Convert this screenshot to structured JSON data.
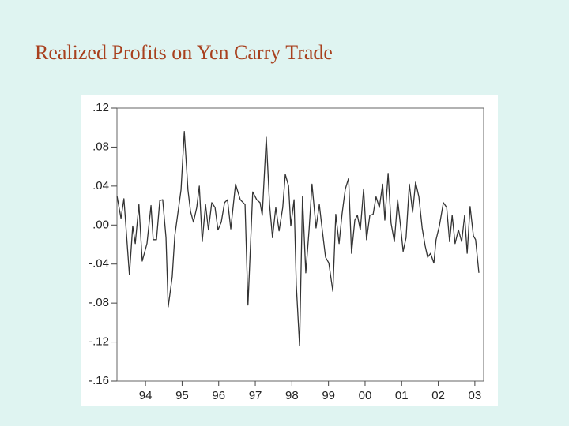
{
  "chart_data": {
    "type": "line",
    "title": "Realized Profits on Yen Carry Trade",
    "x": [
      1993.72,
      1993.83,
      1993.91,
      1994.06,
      1994.15,
      1994.22,
      1994.32,
      1994.41,
      1994.54,
      1994.65,
      1994.71,
      1994.8,
      1994.89,
      1994.97,
      1995.06,
      1995.12,
      1995.23,
      1995.3,
      1995.38,
      1995.47,
      1995.56,
      1995.66,
      1995.73,
      1995.81,
      1995.9,
      1995.97,
      1996.05,
      1996.14,
      1996.22,
      1996.31,
      1996.4,
      1996.48,
      1996.57,
      1996.66,
      1996.74,
      1996.83,
      1996.96,
      1997.09,
      1997.22,
      1997.3,
      1997.43,
      1997.54,
      1997.63,
      1997.69,
      1997.8,
      1997.89,
      1997.97,
      1998.06,
      1998.15,
      1998.25,
      1998.32,
      1998.41,
      1998.47,
      1998.56,
      1998.62,
      1998.71,
      1998.79,
      1998.88,
      1998.97,
      1999.05,
      1999.16,
      1999.25,
      1999.33,
      1999.42,
      1999.51,
      1999.62,
      1999.7,
      1999.79,
      1999.87,
      1999.96,
      2000.05,
      2000.13,
      2000.22,
      2000.29,
      2000.37,
      2000.46,
      2000.54,
      2000.63,
      2000.72,
      2000.8,
      2000.89,
      2000.98,
      2001.04,
      2001.13,
      2001.21,
      2001.3,
      2001.39,
      2001.47,
      2001.54,
      2001.62,
      2001.71,
      2001.8,
      2001.88,
      2001.97,
      2002.06,
      2002.14,
      2002.21,
      2002.29,
      2002.38,
      2002.44,
      2002.53,
      2002.64,
      2002.73,
      2002.81,
      2002.88,
      2002.96,
      2003.05,
      2003.14,
      2003.22,
      2003.29,
      2003.37,
      2003.46,
      2003.52,
      2003.61
    ],
    "values": [
      0.03,
      0.007,
      0.027,
      -0.051,
      -0.001,
      -0.019,
      0.021,
      -0.037,
      -0.019,
      0.02,
      -0.015,
      -0.015,
      0.025,
      0.026,
      -0.013,
      -0.084,
      -0.053,
      -0.011,
      0.011,
      0.036,
      0.096,
      0.036,
      0.014,
      0.003,
      0.018,
      0.04,
      -0.017,
      0.021,
      -0.005,
      0.023,
      0.018,
      -0.005,
      0.003,
      0.023,
      0.026,
      -0.004,
      0.042,
      0.026,
      0.021,
      -0.082,
      0.034,
      0.026,
      0.023,
      0.01,
      0.09,
      0.021,
      -0.013,
      0.018,
      -0.006,
      0.018,
      0.052,
      0.04,
      -0.001,
      0.026,
      -0.061,
      -0.124,
      0.029,
      -0.049,
      -0.005,
      0.042,
      -0.003,
      0.021,
      -0.005,
      -0.033,
      -0.039,
      -0.068,
      0.011,
      -0.019,
      0.011,
      0.037,
      0.048,
      -0.029,
      0.005,
      0.01,
      -0.005,
      0.037,
      -0.015,
      0.01,
      0.011,
      0.029,
      0.018,
      0.042,
      0.005,
      0.053,
      0.002,
      -0.017,
      0.026,
      -0.001,
      -0.027,
      -0.013,
      0.042,
      0.013,
      0.044,
      0.029,
      -0.003,
      -0.021,
      -0.033,
      -0.029,
      -0.039,
      -0.015,
      -0.001,
      0.023,
      0.018,
      -0.017,
      0.01,
      -0.019,
      -0.005,
      -0.017,
      0.01,
      -0.029,
      0.019,
      -0.011,
      -0.015,
      -0.049
    ],
    "color": "#333333",
    "xlim": [
      1993.72,
      2003.74
    ],
    "xticks": [
      {
        "value": 1994.5,
        "label": "94"
      },
      {
        "value": 1995.5,
        "label": "95"
      },
      {
        "value": 1996.5,
        "label": "96"
      },
      {
        "value": 1997.5,
        "label": "97"
      },
      {
        "value": 1998.5,
        "label": "98"
      },
      {
        "value": 1999.5,
        "label": "99"
      },
      {
        "value": 2000.5,
        "label": "00"
      },
      {
        "value": 2001.5,
        "label": "01"
      },
      {
        "value": 2002.5,
        "label": "02"
      },
      {
        "value": 2003.5,
        "label": "03"
      }
    ],
    "ylim": [
      -0.16,
      0.12
    ],
    "yticks": [
      {
        "value": 0.12,
        "label": ".12"
      },
      {
        "value": 0.08,
        "label": ".08"
      },
      {
        "value": 0.04,
        "label": ".04"
      },
      {
        "value": 0,
        "label": ".00"
      },
      {
        "value": -0.04,
        "label": "-.04"
      },
      {
        "value": -0.08,
        "label": "-.08"
      },
      {
        "value": -0.12,
        "label": "-.12"
      },
      {
        "value": -0.16,
        "label": "-.16"
      }
    ]
  }
}
